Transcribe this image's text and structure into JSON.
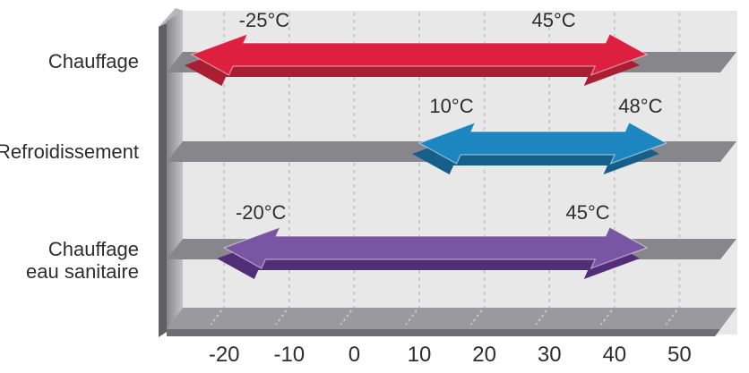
{
  "chart_data": {
    "type": "range-bar",
    "title": "",
    "unit": "°C",
    "orientation": "horizontal",
    "x_ticks": [
      -20,
      -10,
      0,
      10,
      20,
      30,
      40,
      50
    ],
    "x_tick_labels": [
      "-20",
      "-10",
      "0",
      "10",
      "20",
      "30",
      "40",
      "50"
    ],
    "xlim": [
      -29,
      53
    ],
    "grid": "vertical-dashed",
    "legend": "none",
    "rows": [
      {
        "label_lines": [
          "Chauffage"
        ],
        "min": -25,
        "max": 45,
        "min_label": "-25°C",
        "max_label": "45°C",
        "color": "#dd2040",
        "color_dark": "#aa1e34"
      },
      {
        "label_lines": [
          "Refroidissement"
        ],
        "min": 10,
        "max": 48,
        "min_label": "10°C",
        "max_label": "48°C",
        "color": "#1d86c0",
        "color_dark": "#165f88"
      },
      {
        "label_lines": [
          "Chauffage",
          "eau sanitaire"
        ],
        "min": -20,
        "max": 45,
        "min_label": "-20°C",
        "max_label": "45°C",
        "color": "#7a55a4",
        "color_dark": "#522e79"
      }
    ]
  },
  "style_colors": {
    "plot_background": "#e8e8e9",
    "track_bar": "#87878b",
    "gridline": "#c8c8ca",
    "wall_edge": "#5f5f62",
    "wall_chamfer": "#b7b7b9",
    "wall_face_dark": "#85858a",
    "wall_face_light": "#c5c5c7",
    "floor_top": "#9a9a9c",
    "floor_front": "#6e6e71",
    "floor_dash": "#c4c4c5",
    "arrow_edge_highlight": "#ffffff",
    "text": "#2d2d2d"
  }
}
